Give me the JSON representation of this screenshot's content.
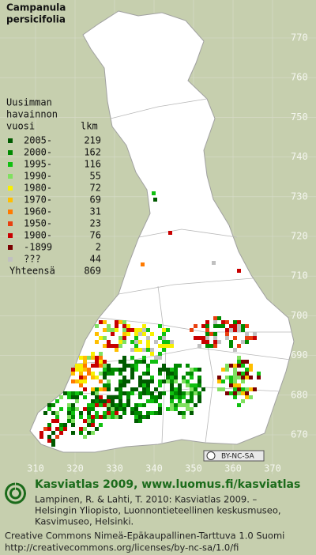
{
  "title": [
    "Campanula",
    "persicifolia"
  ],
  "legend": {
    "header": [
      "Uusimman",
      "havainnon",
      "vuosi"
    ],
    "count_header": "lkm",
    "items": [
      {
        "label": "2005-",
        "count": 219,
        "color": "#005a00"
      },
      {
        "label": "2000-",
        "count": 162,
        "color": "#008a00"
      },
      {
        "label": "1995-",
        "count": 116,
        "color": "#10c010"
      },
      {
        "label": "1990-",
        "count": 55,
        "color": "#80e060"
      },
      {
        "label": "1980-",
        "count": 72,
        "color": "#f8f000"
      },
      {
        "label": "1970-",
        "count": 69,
        "color": "#ffbe00"
      },
      {
        "label": "1960-",
        "count": 31,
        "color": "#ff7a00"
      },
      {
        "label": "1950-",
        "count": 23,
        "color": "#e84010"
      },
      {
        "label": "1900-",
        "count": 76,
        "color": "#c80000"
      },
      {
        "label": "-1899",
        "count": 2,
        "color": "#7a0000"
      },
      {
        "label": "???",
        "count": 44,
        "color": "#c0c0c0"
      }
    ],
    "total": {
      "label": "Yhteensä",
      "count": 869
    }
  },
  "map": {
    "northing_labels": [
      770,
      760,
      750,
      740,
      730,
      720,
      710,
      700,
      690,
      680,
      670
    ],
    "easting_labels": [
      310,
      320,
      330,
      340,
      350,
      360,
      370
    ],
    "license_badge": "BY-NC-SA"
  },
  "footer": {
    "title": "Kasviatlas 2009, www.luomus.fi/kasviatlas",
    "citation": [
      "Lampinen, R. & Lahti, T. 2010: Kasviatlas 2009. –",
      "Helsingin Yliopisto, Luonnontieteellinen keskusmuseo,",
      "Kasvimuseo, Helsinki."
    ],
    "license": [
      "Creative Commons Nimeä-Epäkaupallinen-Tarttuva 1.0 Suomi",
      "http://creativecommons.org/licenses/by-nc-sa/1.0/fi"
    ]
  }
}
